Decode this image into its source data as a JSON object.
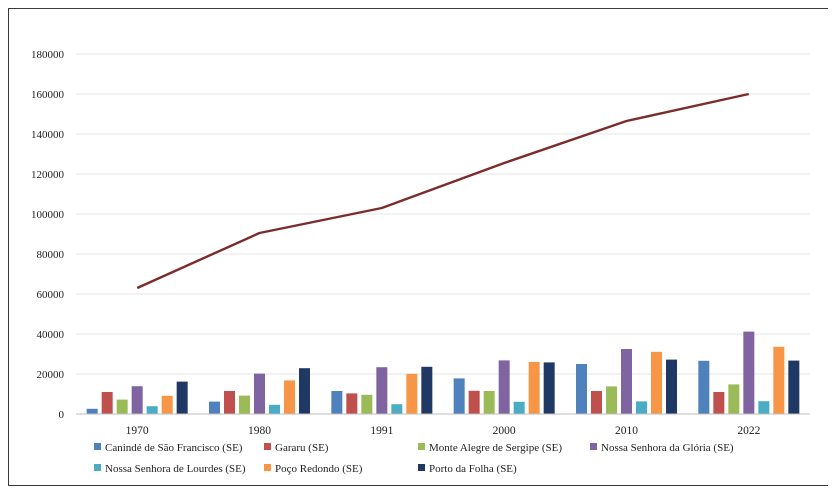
{
  "chart_data": {
    "type": "bar",
    "title": "",
    "xlabel": "",
    "ylabel": "",
    "ylim": [
      0,
      180000
    ],
    "yticks": [
      0,
      20000,
      40000,
      60000,
      80000,
      100000,
      120000,
      140000,
      160000,
      180000
    ],
    "grid": true,
    "legend_position": "bottom",
    "categories": [
      "1970",
      "1980",
      "1991",
      "2000",
      "2010",
      "2022"
    ],
    "series": [
      {
        "name": "Canindé de São Francisco (SE)",
        "color": "#4f81bd",
        "values": [
          2600,
          6200,
          11500,
          17800,
          25000,
          26600
        ]
      },
      {
        "name": "Gararu (SE)",
        "color": "#c0504d",
        "values": [
          11000,
          11500,
          10300,
          11600,
          11500,
          11000
        ]
      },
      {
        "name": "Monte Alegre de Sergipe (SE)",
        "color": "#9bbb59",
        "values": [
          7200,
          9200,
          9600,
          11500,
          13800,
          14800
        ]
      },
      {
        "name": "Nossa Senhora da Glória (SE)",
        "color": "#8064a2",
        "values": [
          13900,
          20200,
          23400,
          26800,
          32500,
          41200
        ]
      },
      {
        "name": "Nossa Senhora de Lourdes (SE)",
        "color": "#4bacc6",
        "values": [
          3900,
          4600,
          4900,
          6100,
          6300,
          6400
        ]
      },
      {
        "name": "Poço Redondo (SE)",
        "color": "#f79646",
        "values": [
          9100,
          16800,
          20100,
          26000,
          31100,
          33600
        ]
      },
      {
        "name": "Porto da Folha (SE)",
        "color": "#1f3864",
        "values": [
          16200,
          22900,
          23600,
          25800,
          27200,
          26700
        ]
      }
    ],
    "line_series": [
      {
        "color": "#7b2c2c",
        "values": [
          63000,
          90500,
          103000,
          125500,
          146500,
          160000
        ]
      }
    ]
  }
}
